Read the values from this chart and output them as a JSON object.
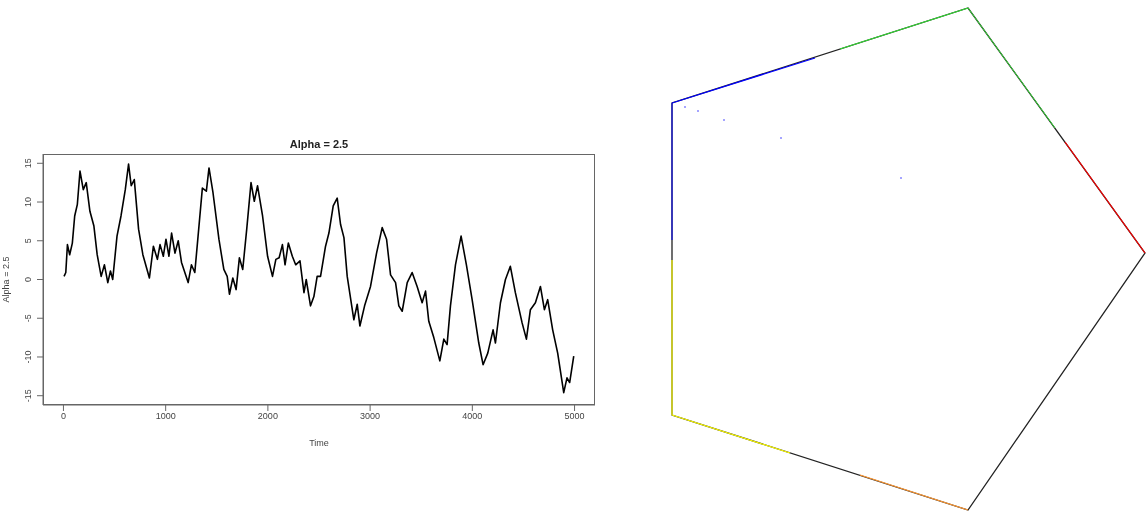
{
  "chart_data": {
    "type": "line",
    "title": "Alpha = 2.5",
    "xlabel": "Time",
    "ylabel": "Alpha = 2.5",
    "x": [
      6,
      23,
      39,
      61,
      87,
      110,
      136,
      162,
      194,
      223,
      259,
      298,
      330,
      369,
      401,
      434,
      460,
      482,
      524,
      563,
      605,
      637,
      663,
      693,
      735,
      777,
      841,
      880,
      919,
      945,
      977,
      1003,
      1032,
      1058,
      1091,
      1123,
      1155,
      1220,
      1252,
      1285,
      1317,
      1359,
      1398,
      1424,
      1463,
      1521,
      1569,
      1602,
      1624,
      1657,
      1689,
      1721,
      1754,
      1793,
      1835,
      1867,
      1899,
      1948,
      1997,
      2045,
      2078,
      2110,
      2142,
      2168,
      2200,
      2239,
      2272,
      2314,
      2353,
      2375,
      2417,
      2450,
      2482,
      2515,
      2564,
      2597,
      2639,
      2678,
      2711,
      2744,
      2776,
      2841,
      2874,
      2900,
      2946,
      3004,
      3063,
      3118,
      3161,
      3200,
      3249,
      3281,
      3314,
      3363,
      3411,
      3460,
      3509,
      3542,
      3574,
      3623,
      3682,
      3721,
      3753,
      3786,
      3835,
      3890,
      3942,
      3998,
      4063,
      4105,
      4151,
      4203,
      4226,
      4275,
      4324,
      4372,
      4421,
      4487,
      4529,
      4568,
      4617,
      4666,
      4705,
      4737,
      4786,
      4835,
      4894,
      4926,
      4952,
      4992
    ],
    "series": [
      {
        "color": "#000000",
        "values": [
          0.4,
          0.9,
          4.5,
          3.2,
          4.7,
          8.2,
          9.7,
          14.0,
          11.6,
          12.5,
          8.8,
          6.9,
          3.2,
          0.4,
          1.9,
          -0.4,
          1.1,
          0,
          5.6,
          8.2,
          11.6,
          14.9,
          12.1,
          12.9,
          6.5,
          3.2,
          0.2,
          4.3,
          2.6,
          4.5,
          3.0,
          5.2,
          3.0,
          6.0,
          3.4,
          5.0,
          2.2,
          -0.4,
          1.9,
          0.9,
          5.6,
          11.8,
          11.4,
          14.4,
          11.2,
          5.2,
          1.3,
          0.4,
          -1.9,
          0.2,
          -1.3,
          2.8,
          1.3,
          6.5,
          12.5,
          10.1,
          12.1,
          8.2,
          3.0,
          0.4,
          2.6,
          2.8,
          4.5,
          1.9,
          4.7,
          3.0,
          1.9,
          2.4,
          -1.7,
          0,
          -3.4,
          -2.2,
          0.4,
          0.4,
          4.3,
          6.0,
          9.5,
          10.5,
          7.1,
          5.4,
          0.4,
          -5.2,
          -3.2,
          -6.0,
          -3.4,
          -0.9,
          3.4,
          6.7,
          5.2,
          0.6,
          -0.4,
          -3.4,
          -4.1,
          -0.4,
          0.9,
          -0.9,
          -3.0,
          -1.5,
          -5.4,
          -7.5,
          -10.5,
          -7.7,
          -8.4,
          -3.4,
          1.9,
          5.6,
          1.9,
          -2.6,
          -8.2,
          -11.0,
          -9.5,
          -6.5,
          -8.2,
          -3.0,
          0,
          1.7,
          -1.7,
          -5.6,
          -7.7,
          -3.9,
          -3.0,
          -0.9,
          -3.9,
          -2.6,
          -6.5,
          -9.5,
          -14.6,
          -12.7,
          -13.3,
          -9.9
        ]
      }
    ],
    "xlim": [
      -200,
      5200
    ],
    "ylim": [
      -16.2,
      16.2
    ],
    "xticks": [
      0,
      1000,
      2000,
      3000,
      4000,
      5000
    ],
    "yticks": [
      -15,
      -10,
      -5,
      0,
      5,
      10,
      15
    ],
    "marker": "none",
    "line_style": "solid"
  }
}
